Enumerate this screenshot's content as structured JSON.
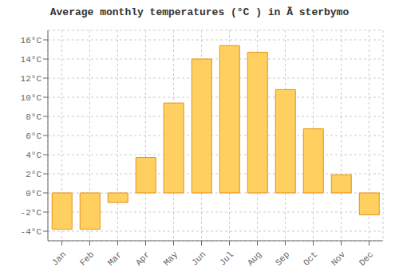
{
  "chart_data": {
    "type": "bar",
    "title": "Average monthly temperatures (°C ) in Ã sterbymo",
    "categories": [
      "Jan",
      "Feb",
      "Mar",
      "Apr",
      "May",
      "Jun",
      "Jul",
      "Aug",
      "Sep",
      "Oct",
      "Nov",
      "Dec"
    ],
    "values": [
      -3.8,
      -3.8,
      -1.0,
      3.7,
      9.4,
      14.0,
      15.4,
      14.7,
      10.8,
      6.7,
      1.9,
      -2.3
    ],
    "color": "#FFD060",
    "ylim": [
      -5,
      17
    ],
    "yticks": [
      {
        "value": -4,
        "label": "-4°C"
      },
      {
        "value": -2,
        "label": "-2°C"
      },
      {
        "value": 0,
        "label": "0°C"
      },
      {
        "value": 2,
        "label": "2°C"
      },
      {
        "value": 4,
        "label": "4°C"
      },
      {
        "value": 6,
        "label": "6°C"
      },
      {
        "value": 8,
        "label": "8°C"
      },
      {
        "value": 10,
        "label": "10°C"
      },
      {
        "value": 12,
        "label": "12°C"
      },
      {
        "value": 14,
        "label": "14°C"
      },
      {
        "value": 16,
        "label": "16°C"
      }
    ],
    "grid": true
  }
}
